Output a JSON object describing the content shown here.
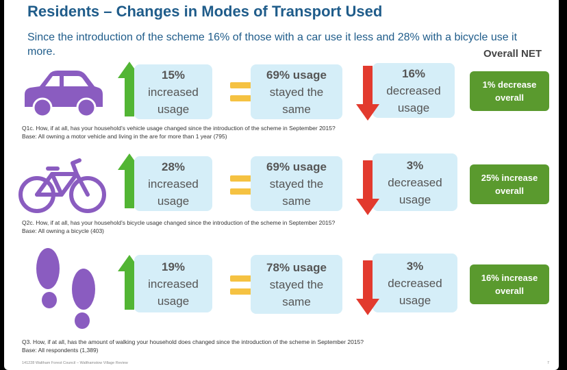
{
  "title": "Residents – Changes in Modes of Transport Used",
  "subtitle": "Since the introduction of the scheme 16% of those with a car use it less and 28% with a bicycle use it more.",
  "net_header": "Overall NET",
  "colors": {
    "title": "#1f5c8a",
    "box": "#d5eef8",
    "up_arrow": "#52b534",
    "down_arrow": "#e23a2e",
    "equals": "#f5c242",
    "net": "#5a9a2e",
    "icon": "#8a5cc0"
  },
  "rows": [
    {
      "icon": "car-icon",
      "increased": {
        "pct": "15%",
        "line1": "increased",
        "line2": "usage"
      },
      "same": {
        "pct": "69% usage",
        "line1": "stayed the",
        "line2": "same"
      },
      "decreased": {
        "pct": "16%",
        "line1": "decreased",
        "line2": "usage"
      },
      "net": {
        "line1": "1% decrease",
        "line2": "overall"
      },
      "question": "Q1c. How, if at all, has your household’s vehicle usage changed since the introduction of the scheme in September 2015?",
      "base": "Base: All owning a motor vehicle and living in the are for more than 1 year (795)"
    },
    {
      "icon": "bicycle-icon",
      "increased": {
        "pct": "28%",
        "line1": "increased",
        "line2": "usage"
      },
      "same": {
        "pct": "69% usage",
        "line1": "stayed the",
        "line2": "same"
      },
      "decreased": {
        "pct": "3%",
        "line1": "decreased",
        "line2": "usage"
      },
      "net": {
        "line1": "25% increase",
        "line2": "overall"
      },
      "question": "Q2c. How, if at all, has your household’s bicycle usage changed since the introduction of the scheme in September 2015?",
      "base": "Base: All owning a bicycle (403)"
    },
    {
      "icon": "footprints-icon",
      "increased": {
        "pct": "19%",
        "line1": "increased",
        "line2": "usage"
      },
      "same": {
        "pct": "78% usage",
        "line1": "stayed the",
        "line2": "same"
      },
      "decreased": {
        "pct": "3%",
        "line1": "decreased",
        "line2": "usage"
      },
      "net": {
        "line1": "16% increase",
        "line2": "overall"
      },
      "question": "Q3. How, if at all, has the amount of walking your household does changed since the introduction of the scheme in September 2015?",
      "base": "Base: All respondents (1,389)"
    }
  ],
  "footer": "141228 Waltham Forest Council – Walthamstow Village Review",
  "page_number": "7"
}
